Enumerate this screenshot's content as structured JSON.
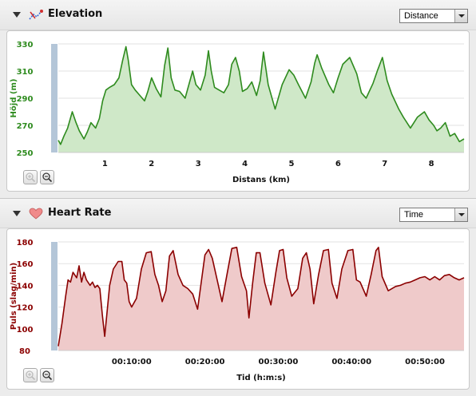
{
  "elevation_panel": {
    "title": "Elevation",
    "icon": "elevation-route-icon",
    "dropdown_value": "Distance",
    "accent_color": "#2e8b1e",
    "fill_color": "#cfe8c8"
  },
  "heart_panel": {
    "title": "Heart Rate",
    "icon": "heart-icon",
    "dropdown_value": "Time",
    "accent_color": "#8b0000",
    "fill_color": "#efcaca"
  },
  "chart_data": [
    {
      "type": "area",
      "title": "",
      "xlabel": "Distans (km)",
      "ylabel": "Höjd (m)",
      "xlim": [
        0,
        8.7
      ],
      "ylim": [
        250,
        330
      ],
      "yticks": [
        250,
        270,
        290,
        310,
        330
      ],
      "xticks": [
        1,
        2,
        3,
        4,
        5,
        6,
        7,
        8
      ],
      "grid": true,
      "x": [
        0.0,
        0.05,
        0.12,
        0.2,
        0.3,
        0.38,
        0.45,
        0.55,
        0.62,
        0.7,
        0.8,
        0.88,
        0.95,
        1.02,
        1.1,
        1.2,
        1.3,
        1.38,
        1.45,
        1.5,
        1.57,
        1.65,
        1.75,
        1.85,
        1.92,
        2.0,
        2.1,
        2.2,
        2.28,
        2.35,
        2.42,
        2.5,
        2.6,
        2.72,
        2.8,
        2.88,
        2.95,
        3.05,
        3.15,
        3.22,
        3.28,
        3.35,
        3.45,
        3.55,
        3.65,
        3.72,
        3.8,
        3.88,
        3.95,
        4.05,
        4.15,
        4.25,
        4.33,
        4.4,
        4.5,
        4.65,
        4.8,
        4.95,
        5.05,
        5.15,
        5.3,
        5.42,
        5.5,
        5.55,
        5.65,
        5.8,
        5.9,
        6.0,
        6.1,
        6.25,
        6.4,
        6.5,
        6.6,
        6.75,
        6.85,
        6.95,
        7.05,
        7.15,
        7.3,
        7.4,
        7.55,
        7.7,
        7.85,
        7.95,
        8.05,
        8.12,
        8.2,
        8.3,
        8.4,
        8.5,
        8.6,
        8.65,
        8.7
      ],
      "y": [
        259,
        256,
        262,
        268,
        280,
        272,
        266,
        260,
        265,
        272,
        268,
        275,
        288,
        296,
        298,
        300,
        305,
        318,
        328,
        318,
        300,
        296,
        292,
        288,
        295,
        305,
        297,
        291,
        314,
        327,
        305,
        296,
        295,
        290,
        300,
        310,
        300,
        296,
        307,
        325,
        310,
        298,
        296,
        294,
        300,
        315,
        320,
        310,
        295,
        297,
        302,
        292,
        303,
        324,
        300,
        282,
        300,
        311,
        307,
        300,
        290,
        302,
        316,
        322,
        312,
        300,
        294,
        305,
        315,
        320,
        308,
        294,
        290,
        301,
        311,
        320,
        303,
        293,
        282,
        276,
        268,
        276,
        280,
        274,
        270,
        266,
        268,
        272,
        262,
        264,
        258,
        259,
        260
      ]
    },
    {
      "type": "area",
      "title": "",
      "xlabel": "Tid (h:m:s)",
      "ylabel": "Puls (slag/min)",
      "xlim": [
        0,
        3320
      ],
      "ylim": [
        80,
        180
      ],
      "yticks": [
        80,
        100,
        120,
        140,
        160,
        180
      ],
      "xtick_values": [
        600,
        1200,
        1800,
        2400,
        3000
      ],
      "xtick_labels": [
        "00:10:00",
        "00:20:00",
        "00:30:00",
        "00:40:00",
        "00:50:00"
      ],
      "grid": true,
      "x": [
        0,
        30,
        60,
        80,
        100,
        120,
        150,
        170,
        190,
        210,
        230,
        260,
        280,
        300,
        320,
        340,
        360,
        380,
        420,
        450,
        490,
        520,
        540,
        560,
        580,
        600,
        640,
        680,
        720,
        760,
        790,
        820,
        850,
        880,
        910,
        940,
        980,
        1020,
        1060,
        1100,
        1140,
        1170,
        1200,
        1230,
        1260,
        1300,
        1340,
        1380,
        1420,
        1460,
        1500,
        1540,
        1560,
        1590,
        1620,
        1650,
        1690,
        1740,
        1780,
        1810,
        1840,
        1870,
        1910,
        1960,
        2000,
        2030,
        2060,
        2090,
        2130,
        2170,
        2210,
        2240,
        2280,
        2320,
        2370,
        2410,
        2440,
        2470,
        2520,
        2560,
        2600,
        2620,
        2650,
        2700,
        2760,
        2800,
        2840,
        2880,
        2920,
        2960,
        3000,
        3040,
        3080,
        3120,
        3160,
        3200,
        3240,
        3280,
        3320
      ],
      "y": [
        84,
        105,
        130,
        145,
        143,
        152,
        147,
        158,
        143,
        152,
        145,
        140,
        143,
        138,
        140,
        137,
        113,
        93,
        140,
        155,
        162,
        162,
        145,
        142,
        125,
        120,
        128,
        155,
        170,
        171,
        150,
        140,
        125,
        135,
        167,
        172,
        150,
        140,
        137,
        132,
        118,
        143,
        168,
        173,
        165,
        145,
        125,
        150,
        174,
        175,
        148,
        135,
        110,
        142,
        170,
        170,
        142,
        122,
        152,
        172,
        173,
        147,
        130,
        137,
        165,
        170,
        155,
        123,
        150,
        172,
        173,
        142,
        128,
        155,
        172,
        173,
        145,
        143,
        130,
        150,
        172,
        175,
        148,
        135,
        139,
        140,
        142,
        143,
        145,
        147,
        148,
        145,
        148,
        145,
        149,
        150,
        147,
        145,
        147
      ]
    }
  ]
}
